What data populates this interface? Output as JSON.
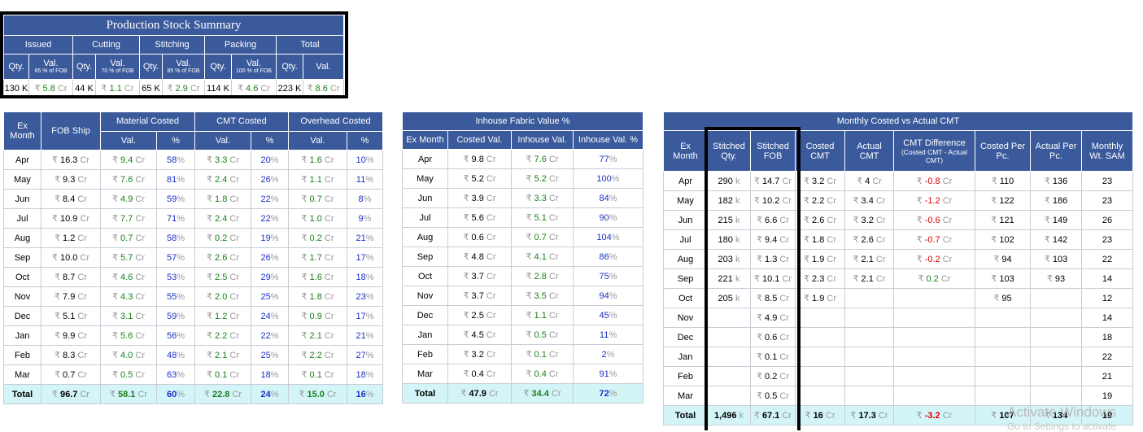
{
  "currency": "₹",
  "unit_cr": "Cr",
  "unit_k": "k",
  "unit_K": "K",
  "stock_summary": {
    "title": "Production Stock Summary",
    "groups": [
      "Issued",
      "Cutting",
      "Stitching",
      "Packing",
      "Total"
    ],
    "qty_label": "Qty.",
    "val_label": "Val.",
    "val_subs": [
      "65 % of FOB",
      "70 % of FOB",
      "85 % of FOB",
      "100 % of FOB",
      ""
    ],
    "qty": [
      "130",
      "44",
      "65",
      "114",
      "223"
    ],
    "val": [
      "5.8",
      "1.1",
      "2.9",
      "4.6",
      "8.6"
    ]
  },
  "material_table": {
    "col_month": "Ex Month",
    "col_fob": "FOB Ship",
    "group_material": "Material Costed",
    "group_cmt": "CMT Costed",
    "group_overhead": "Overhead Costed",
    "sub_val": "Val.",
    "sub_pct": "%",
    "rows": [
      {
        "month": "Apr",
        "fob": "16.3",
        "mat": "9.4",
        "mat_pct": "58",
        "cmt": "3.3",
        "cmt_pct": "20",
        "oh": "1.6",
        "oh_pct": "10"
      },
      {
        "month": "May",
        "fob": "9.3",
        "mat": "7.6",
        "mat_pct": "81",
        "cmt": "2.4",
        "cmt_pct": "26",
        "oh": "1.1",
        "oh_pct": "11"
      },
      {
        "month": "Jun",
        "fob": "8.4",
        "mat": "4.9",
        "mat_pct": "59",
        "cmt": "1.8",
        "cmt_pct": "22",
        "oh": "0.7",
        "oh_pct": "8"
      },
      {
        "month": "Jul",
        "fob": "10.9",
        "mat": "7.7",
        "mat_pct": "71",
        "cmt": "2.4",
        "cmt_pct": "22",
        "oh": "1.0",
        "oh_pct": "9"
      },
      {
        "month": "Aug",
        "fob": "1.2",
        "mat": "0.7",
        "mat_pct": "58",
        "cmt": "0.2",
        "cmt_pct": "19",
        "oh": "0.2",
        "oh_pct": "21"
      },
      {
        "month": "Sep",
        "fob": "10.0",
        "mat": "5.7",
        "mat_pct": "57",
        "cmt": "2.6",
        "cmt_pct": "26",
        "oh": "1.7",
        "oh_pct": "17"
      },
      {
        "month": "Oct",
        "fob": "8.7",
        "mat": "4.6",
        "mat_pct": "53",
        "cmt": "2.5",
        "cmt_pct": "29",
        "oh": "1.6",
        "oh_pct": "18"
      },
      {
        "month": "Nov",
        "fob": "7.9",
        "mat": "4.3",
        "mat_pct": "55",
        "cmt": "2.0",
        "cmt_pct": "25",
        "oh": "1.8",
        "oh_pct": "23"
      },
      {
        "month": "Dec",
        "fob": "5.1",
        "mat": "3.1",
        "mat_pct": "59",
        "cmt": "1.2",
        "cmt_pct": "24",
        "oh": "0.9",
        "oh_pct": "17"
      },
      {
        "month": "Jan",
        "fob": "9.9",
        "mat": "5.6",
        "mat_pct": "56",
        "cmt": "2.2",
        "cmt_pct": "22",
        "oh": "2.1",
        "oh_pct": "21"
      },
      {
        "month": "Feb",
        "fob": "8.3",
        "mat": "4.0",
        "mat_pct": "48",
        "cmt": "2.1",
        "cmt_pct": "25",
        "oh": "2.2",
        "oh_pct": "27"
      },
      {
        "month": "Mar",
        "fob": "0.7",
        "mat": "0.5",
        "mat_pct": "63",
        "cmt": "0.1",
        "cmt_pct": "18",
        "oh": "0.1",
        "oh_pct": "18"
      }
    ],
    "total": {
      "month": "Total",
      "fob": "96.7",
      "mat": "58.1",
      "mat_pct": "60",
      "cmt": "22.8",
      "cmt_pct": "24",
      "oh": "15.0",
      "oh_pct": "16"
    }
  },
  "inhouse_table": {
    "title": "Inhouse Fabric Value %",
    "col_month": "Ex Month",
    "col_costed": "Costed Val.",
    "col_inhouse": "Inhouse Val.",
    "col_pct": "Inhouse Val. %",
    "rows": [
      {
        "month": "Apr",
        "costed": "9.8",
        "inhouse": "7.6",
        "pct": "77"
      },
      {
        "month": "May",
        "costed": "5.2",
        "inhouse": "5.2",
        "pct": "100"
      },
      {
        "month": "Jun",
        "costed": "3.9",
        "inhouse": "3.3",
        "pct": "84"
      },
      {
        "month": "Jul",
        "costed": "5.6",
        "inhouse": "5.1",
        "pct": "90"
      },
      {
        "month": "Aug",
        "costed": "0.6",
        "inhouse": "0.7",
        "pct": "104"
      },
      {
        "month": "Sep",
        "costed": "4.8",
        "inhouse": "4.1",
        "pct": "86"
      },
      {
        "month": "Oct",
        "costed": "3.7",
        "inhouse": "2.8",
        "pct": "75"
      },
      {
        "month": "Nov",
        "costed": "3.7",
        "inhouse": "3.5",
        "pct": "94"
      },
      {
        "month": "Dec",
        "costed": "2.5",
        "inhouse": "1.1",
        "pct": "45"
      },
      {
        "month": "Jan",
        "costed": "4.5",
        "inhouse": "0.5",
        "pct": "11"
      },
      {
        "month": "Feb",
        "costed": "3.2",
        "inhouse": "0.1",
        "pct": "2"
      },
      {
        "month": "Mar",
        "costed": "0.4",
        "inhouse": "0.4",
        "pct": "91"
      }
    ],
    "total": {
      "month": "Total",
      "costed": "47.9",
      "inhouse": "34.4",
      "pct": "72"
    }
  },
  "cmt_table": {
    "title": "Monthly Costed vs Actual CMT",
    "col_month": "Ex Month",
    "col_stqty": "Stitched Qty.",
    "col_stfob": "Stitched FOB",
    "col_costed": "Costed CMT",
    "col_actual": "Actual CMT",
    "col_diff": "CMT Difference",
    "col_diff_sub": "(Costed CMT - Actual CMT)",
    "col_cpp": "Costed Per Pc.",
    "col_app": "Actual Per Pc.",
    "col_sam": "Monthly Wt. SAM",
    "rows": [
      {
        "month": "Apr",
        "stqty": "290",
        "stfob": "14.7",
        "costed": "3.2",
        "actual": "4",
        "diff": "-0.8",
        "cpp": "110",
        "app": "136",
        "sam": "23"
      },
      {
        "month": "May",
        "stqty": "182",
        "stfob": "10.2",
        "costed": "2.2",
        "actual": "3.4",
        "diff": "-1.2",
        "cpp": "122",
        "app": "186",
        "sam": "23"
      },
      {
        "month": "Jun",
        "stqty": "215",
        "stfob": "6.6",
        "costed": "2.6",
        "actual": "3.2",
        "diff": "-0.6",
        "cpp": "121",
        "app": "149",
        "sam": "26"
      },
      {
        "month": "Jul",
        "stqty": "180",
        "stfob": "9.4",
        "costed": "1.8",
        "actual": "2.6",
        "diff": "-0.7",
        "cpp": "102",
        "app": "142",
        "sam": "23"
      },
      {
        "month": "Aug",
        "stqty": "203",
        "stfob": "1.3",
        "costed": "1.9",
        "actual": "2.1",
        "diff": "-0.2",
        "cpp": "94",
        "app": "103",
        "sam": "22"
      },
      {
        "month": "Sep",
        "stqty": "221",
        "stfob": "10.1",
        "costed": "2.3",
        "actual": "2.1",
        "diff": "0.2",
        "cpp": "103",
        "app": "93",
        "sam": "14"
      },
      {
        "month": "Oct",
        "stqty": "205",
        "stfob": "8.5",
        "costed": "1.9",
        "actual": "",
        "diff": "",
        "cpp": "95",
        "app": "",
        "sam": "12"
      },
      {
        "month": "Nov",
        "stqty": "",
        "stfob": "4.9",
        "costed": "",
        "actual": "",
        "diff": "",
        "cpp": "",
        "app": "",
        "sam": "14"
      },
      {
        "month": "Dec",
        "stqty": "",
        "stfob": "0.6",
        "costed": "",
        "actual": "",
        "diff": "",
        "cpp": "",
        "app": "",
        "sam": "18"
      },
      {
        "month": "Jan",
        "stqty": "",
        "stfob": "0.1",
        "costed": "",
        "actual": "",
        "diff": "",
        "cpp": "",
        "app": "",
        "sam": "22"
      },
      {
        "month": "Feb",
        "stqty": "",
        "stfob": "0.2",
        "costed": "",
        "actual": "",
        "diff": "",
        "cpp": "",
        "app": "",
        "sam": "21"
      },
      {
        "month": "Mar",
        "stqty": "",
        "stfob": "0.5",
        "costed": "",
        "actual": "",
        "diff": "",
        "cpp": "",
        "app": "",
        "sam": "19"
      }
    ],
    "total": {
      "month": "Total",
      "stqty": "1,496",
      "stfob": "67.1",
      "costed": "16",
      "actual": "17.3",
      "diff": "-3.2",
      "cpp": "107",
      "app": "134",
      "sam": "19"
    }
  },
  "watermark": {
    "line1": "Activate Windows",
    "line2": "Go to Settings to activate"
  },
  "colors": {
    "header": "#3a5a9c",
    "total_bg": "#d4f5f8",
    "green": "#1a7f1a",
    "blue": "#1c2fc7",
    "red": "#e00000"
  }
}
